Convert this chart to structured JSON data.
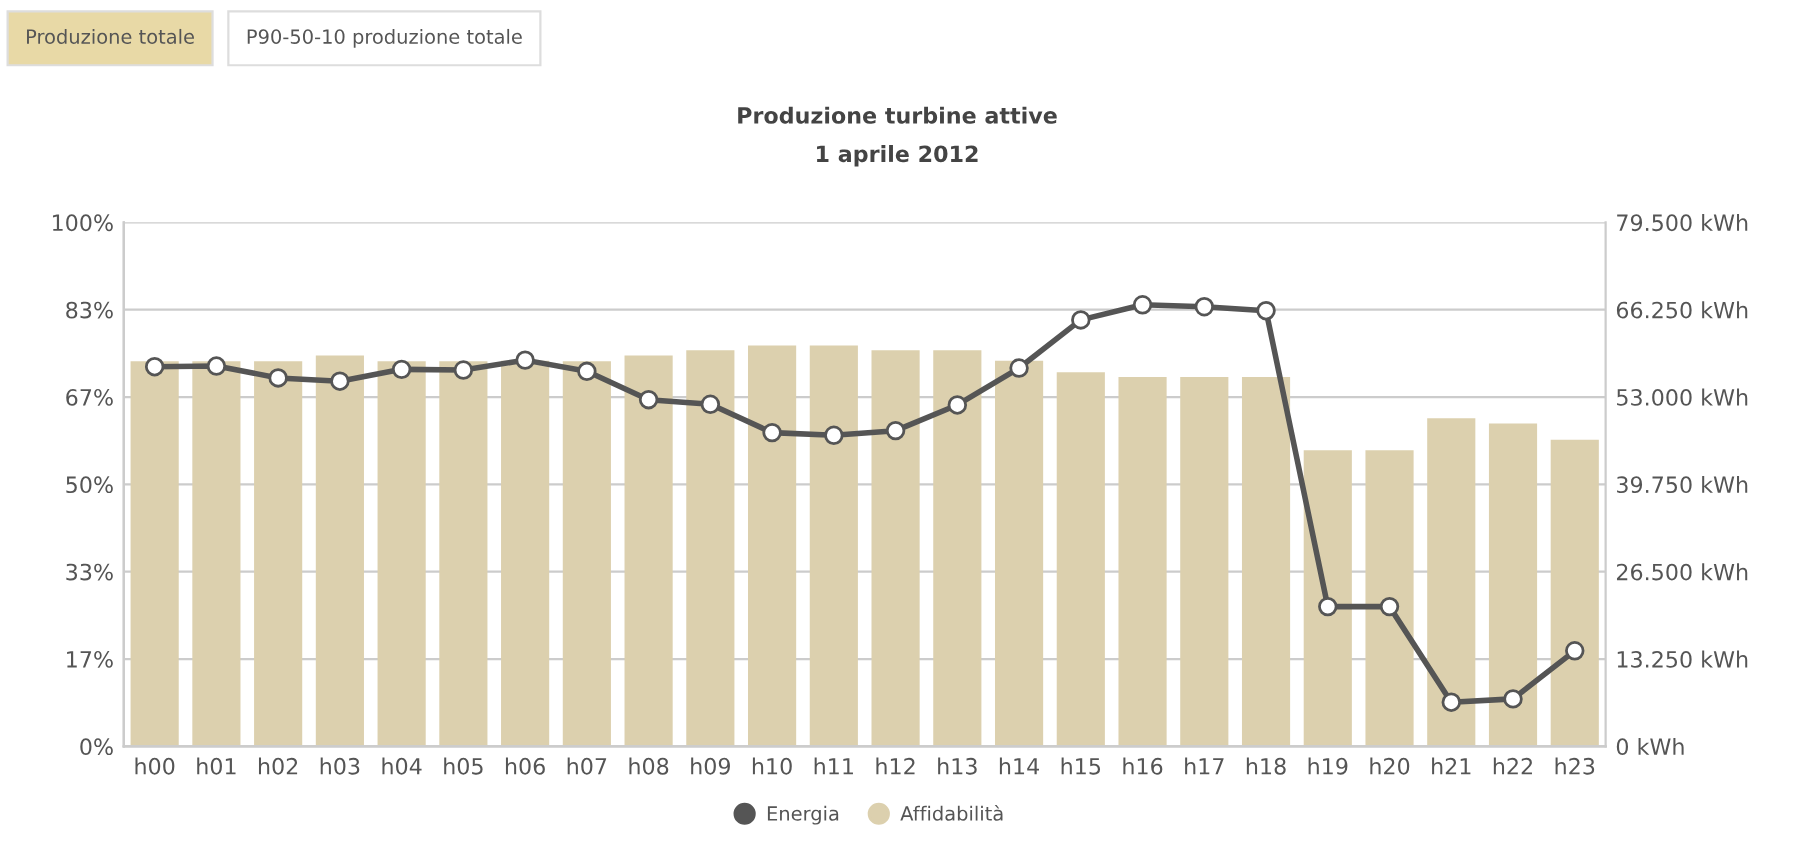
{
  "chart_data": {
    "type": "bar",
    "title": "Produzione turbine attive",
    "subtitle": "1 aprile 2012",
    "annotations": [
      "Produzione totale",
      "P90-50-10 produzione totale"
    ],
    "categories": [
      "h00",
      "h01",
      "h02",
      "h03",
      "h04",
      "h05",
      "h06",
      "h07",
      "h08",
      "h09",
      "h10",
      "h11",
      "h12",
      "h13",
      "h14",
      "h15",
      "h16",
      "h17",
      "h18",
      "h19",
      "h20",
      "h21",
      "h22",
      "h23"
    ],
    "series": [
      {
        "name": "Energia",
        "type": "line",
        "axis": "y2",
        "color": "#555555",
        "marker": "circle",
        "line_style": "solid",
        "values": [
          57600,
          57700,
          55900,
          55400,
          57200,
          57100,
          58600,
          56900,
          52600,
          51900,
          47600,
          47200,
          47900,
          51800,
          57400,
          64700,
          67000,
          66700,
          66100,
          21200,
          21200,
          6700,
          7200,
          14500
        ]
      },
      {
        "name": "Affidabilità",
        "color": "#dcd0ae",
        "values": [
          73.5,
          73.5,
          73.5,
          74.6,
          73.5,
          73.5,
          73.6,
          73.5,
          74.6,
          75.6,
          76.5,
          76.5,
          75.6,
          75.6,
          73.6,
          71.4,
          70.5,
          70.5,
          70.5,
          56.5,
          56.5,
          62.6,
          61.6,
          58.5
        ]
      }
    ],
    "ylim": [
      0,
      100
    ],
    "yticks": [
      {
        "value": 0,
        "label": "0%"
      },
      {
        "value": 16.667,
        "label": "17%"
      },
      {
        "value": 33.333,
        "label": "33%"
      },
      {
        "value": 50,
        "label": "50%"
      },
      {
        "value": 66.667,
        "label": "67%"
      },
      {
        "value": 83.333,
        "label": "83%"
      },
      {
        "value": 100,
        "label": "100%"
      }
    ],
    "y2lim": [
      0,
      79500
    ],
    "y2ticks": [
      {
        "value": 0,
        "label": "0 kWh"
      },
      {
        "value": 13250,
        "label": "13.250 kWh"
      },
      {
        "value": 26500,
        "label": "26.500 kWh"
      },
      {
        "value": 39750,
        "label": "39.750 kWh"
      },
      {
        "value": 53000,
        "label": "53.000 kWh"
      },
      {
        "value": 66250,
        "label": "66.250 kWh"
      },
      {
        "value": 79500,
        "label": "79.500 kWh"
      }
    ],
    "grid": "y",
    "legend": "bottom"
  }
}
